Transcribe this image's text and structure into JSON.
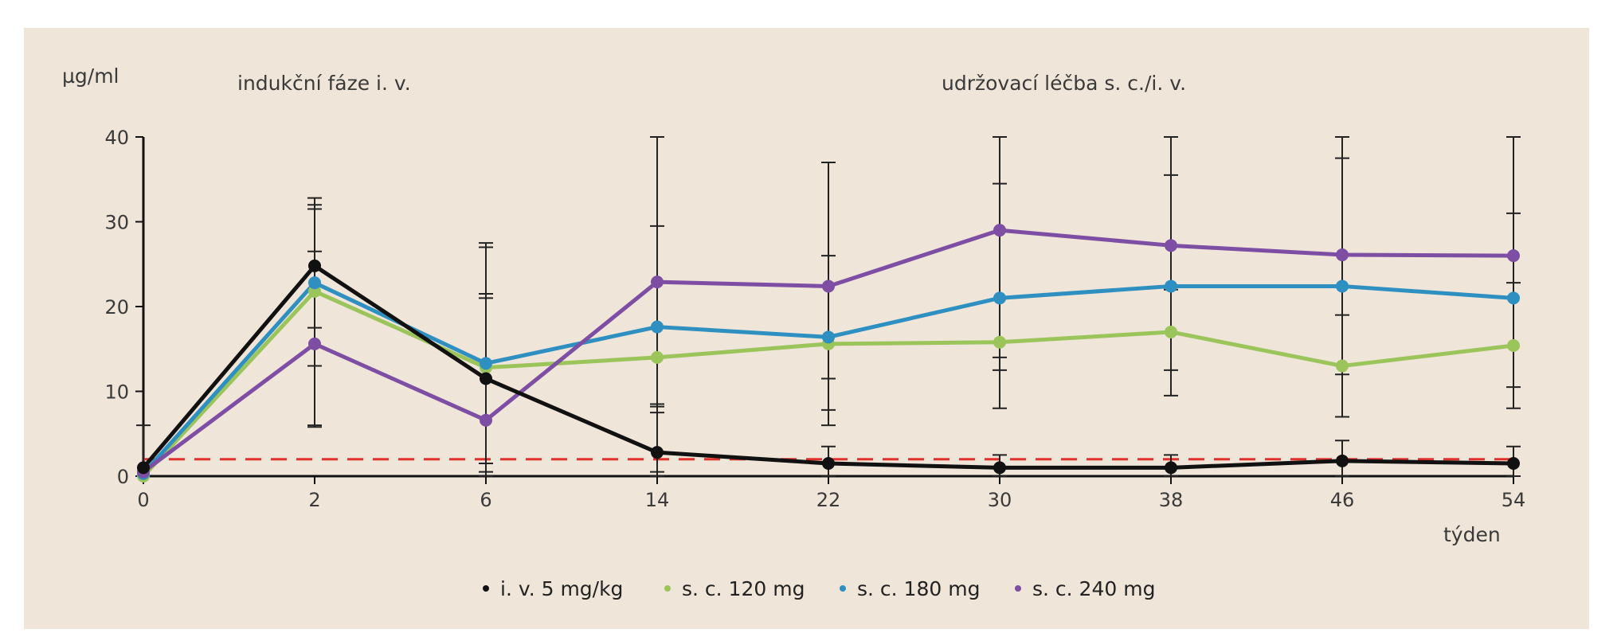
{
  "chart_data": {
    "type": "line",
    "ylabel": "µg/ml",
    "xlabel": "týden",
    "annotations": [
      {
        "text": "indukční fáze i. v.",
        "at_week": 2
      },
      {
        "text": "udržovací léčba s. c./i. v.",
        "at_week": 30
      }
    ],
    "x": [
      0,
      2,
      6,
      14,
      22,
      30,
      38,
      46,
      54
    ],
    "x_tick_labels": [
      "0",
      "2",
      "6",
      "14",
      "22",
      "30",
      "38",
      "46",
      "54"
    ],
    "y_ticks": [
      0,
      10,
      20,
      30,
      40
    ],
    "ylim": [
      0,
      40
    ],
    "threshold": {
      "value": 2,
      "color": "#e0302a",
      "style": "dashed"
    },
    "series": [
      {
        "name": "i. v. 5 mg/kg",
        "color": "#111111",
        "values": [
          1.0,
          24.8,
          11.5,
          2.8,
          1.5,
          1.0,
          1.0,
          1.8,
          1.5
        ],
        "err_low": [
          0,
          17.5,
          0,
          0,
          0,
          0,
          0,
          0,
          0
        ],
        "err_high": [
          6,
          32.8,
          21.5,
          8.5,
          3.5,
          2.5,
          2.5,
          4.2,
          3.5
        ]
      },
      {
        "name": "s. c. 120 mg",
        "color": "#9bc55b",
        "values": [
          0,
          21.8,
          12.8,
          14.0,
          15.6,
          15.8,
          17.0,
          13.0,
          15.4
        ],
        "err_low": [
          0,
          6.0,
          0.5,
          0.5,
          7.8,
          8.0,
          9.5,
          7.0,
          8.0
        ],
        "err_high": [
          0,
          31.5,
          21.0,
          29.5,
          26.0,
          34.5,
          35.5,
          37.5,
          31.0
        ]
      },
      {
        "name": "s. c. 180 mg",
        "color": "#2e8fc1",
        "values": [
          0.3,
          22.8,
          13.3,
          17.6,
          16.4,
          21.0,
          22.4,
          22.4,
          21.0
        ],
        "err_low": [
          0,
          13.0,
          1.5,
          7.5,
          6.0,
          12.5,
          12.5,
          12.0,
          10.5
        ],
        "err_high": [
          0,
          32.0,
          27.5,
          40,
          37.0,
          40,
          40,
          40,
          40
        ]
      },
      {
        "name": "s. c. 240 mg",
        "color": "#7d4ea3",
        "values": [
          0.5,
          15.6,
          6.6,
          22.9,
          22.4,
          29.0,
          27.2,
          26.1,
          26.0
        ],
        "err_low": [
          0,
          5.8,
          0,
          8.2,
          11.5,
          14.0,
          22.0,
          19.0,
          22.8
        ],
        "err_high": [
          0,
          26.5,
          27.0,
          40,
          37.0,
          40,
          40,
          40,
          40
        ]
      }
    ],
    "legend": {
      "placement": "bottom-center"
    },
    "grid": false
  }
}
